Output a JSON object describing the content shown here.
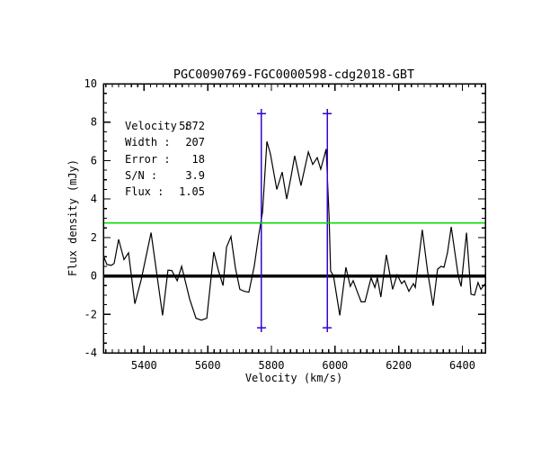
{
  "plot": {
    "title": "PGC0090769-FGC0000598-cdg2018-GBT",
    "xlabel": "Velocity (km/s)",
    "ylabel": "Flux density (mJy)"
  },
  "legend": {
    "rows": [
      {
        "label": "Velocity :",
        "value": "5872"
      },
      {
        "label": "Width :",
        "value": "207"
      },
      {
        "label": "Error :",
        "value": "18"
      },
      {
        "label": "S/N :",
        "value": "3.9"
      },
      {
        "label": "Flux :",
        "value": "1.05"
      }
    ]
  },
  "colors": {
    "axis": "#000000",
    "spectrum": "#000000",
    "annotation_blue": "#3404CC",
    "threshold_green": "#00DC00",
    "background": "#ffffff"
  },
  "chart_data": {
    "type": "line",
    "title": "PGC0090769-FGC0000598-cdg2018-GBT",
    "xlabel": "Velocity (km/s)",
    "ylabel": "Flux density (mJy)",
    "xlim": [
      5272,
      6472
    ],
    "ylim": [
      -4,
      10
    ],
    "x_ticks": [
      5400,
      5600,
      5800,
      6000,
      6200,
      6400
    ],
    "y_ticks": [
      -4,
      -2,
      0,
      2,
      4,
      6,
      8,
      10
    ],
    "x_minor_step": 20,
    "y_minor_step": 0.5,
    "grid": false,
    "legend_position": "upper-left-inside",
    "baseline": {
      "flux": 0,
      "color": "#000000",
      "width": 3.5
    },
    "threshold_line": {
      "flux": 2.75,
      "color": "#00DC00"
    },
    "signal_markers": {
      "velocities": [
        5768.5,
        5975.5
      ],
      "top_flux": 8.45,
      "bottom_flux": -2.7,
      "color": "#3404CC"
    },
    "measurements": {
      "velocity_kms": 5872,
      "width_kms": 207,
      "error_kms": 18,
      "s_n": 3.9,
      "flux_jy_kms": 1.05
    },
    "series": [
      {
        "name": "HI spectrum",
        "points": [
          [
            5272,
            1.05
          ],
          [
            5283,
            0.6
          ],
          [
            5297,
            0.55
          ],
          [
            5306,
            0.65
          ],
          [
            5320,
            1.9
          ],
          [
            5337,
            0.85
          ],
          [
            5351,
            1.2
          ],
          [
            5371,
            -1.45
          ],
          [
            5391,
            -0.2
          ],
          [
            5422,
            2.25
          ],
          [
            5458,
            -2.05
          ],
          [
            5475,
            0.3
          ],
          [
            5487,
            0.28
          ],
          [
            5504,
            -0.25
          ],
          [
            5518,
            0.5
          ],
          [
            5543,
            -1.2
          ],
          [
            5563,
            -2.2
          ],
          [
            5580,
            -2.3
          ],
          [
            5597,
            -2.2
          ],
          [
            5619,
            1.25
          ],
          [
            5633,
            0.3
          ],
          [
            5648,
            -0.5
          ],
          [
            5659,
            1.5
          ],
          [
            5673,
            2.05
          ],
          [
            5687,
            0.4
          ],
          [
            5701,
            -0.7
          ],
          [
            5715,
            -0.8
          ],
          [
            5729,
            -0.85
          ],
          [
            5746,
            0.5
          ],
          [
            5760,
            2.1
          ],
          [
            5772,
            3.3
          ],
          [
            5786,
            7.0
          ],
          [
            5797,
            6.35
          ],
          [
            5817,
            4.5
          ],
          [
            5834,
            5.4
          ],
          [
            5848,
            4.0
          ],
          [
            5862,
            5.2
          ],
          [
            5873,
            6.25
          ],
          [
            5893,
            4.7
          ],
          [
            5916,
            6.45
          ],
          [
            5930,
            5.8
          ],
          [
            5944,
            6.15
          ],
          [
            5955,
            5.55
          ],
          [
            5972,
            6.6
          ],
          [
            5981,
            3.2
          ],
          [
            5986,
            0.25
          ],
          [
            5995,
            0.0
          ],
          [
            6015,
            -2.05
          ],
          [
            6034,
            0.45
          ],
          [
            6048,
            -0.55
          ],
          [
            6057,
            -0.25
          ],
          [
            6074,
            -1.0
          ],
          [
            6082,
            -1.35
          ],
          [
            6094,
            -1.35
          ],
          [
            6113,
            -0.1
          ],
          [
            6125,
            -0.6
          ],
          [
            6133,
            -0.1
          ],
          [
            6144,
            -1.1
          ],
          [
            6161,
            1.1
          ],
          [
            6181,
            -0.7
          ],
          [
            6195,
            0.05
          ],
          [
            6209,
            -0.4
          ],
          [
            6218,
            -0.25
          ],
          [
            6232,
            -0.8
          ],
          [
            6246,
            -0.4
          ],
          [
            6252,
            -0.6
          ],
          [
            6274,
            2.4
          ],
          [
            6291,
            0.2
          ],
          [
            6308,
            -1.55
          ],
          [
            6322,
            0.35
          ],
          [
            6333,
            0.5
          ],
          [
            6342,
            0.45
          ],
          [
            6353,
            1.2
          ],
          [
            6365,
            2.55
          ],
          [
            6387,
            0.0
          ],
          [
            6396,
            -0.55
          ],
          [
            6413,
            2.25
          ],
          [
            6427,
            -0.95
          ],
          [
            6438,
            -1.0
          ],
          [
            6449,
            -0.35
          ],
          [
            6458,
            -0.7
          ],
          [
            6472,
            -0.4
          ]
        ]
      }
    ]
  }
}
